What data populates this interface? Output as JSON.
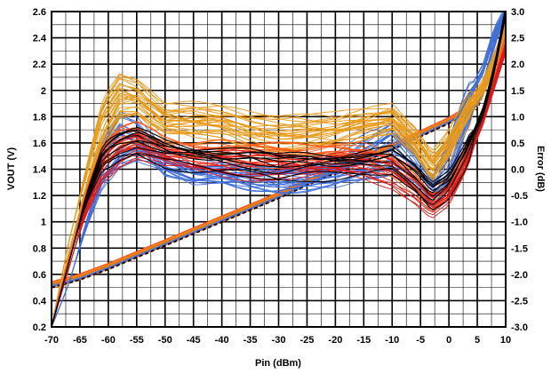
{
  "chart_data": {
    "type": "line",
    "xlabel": "Pin (dBm)",
    "ylabel": "VOUT (V)",
    "y2label": "Error (dB)",
    "xlim": [
      -70,
      10
    ],
    "ylim": [
      0.2,
      2.6
    ],
    "y2lim": [
      -3.0,
      3.0
    ],
    "x_ticks": [
      -70,
      -65,
      -60,
      -55,
      -50,
      -45,
      -40,
      -35,
      -30,
      -25,
      -20,
      -15,
      -10,
      -5,
      0,
      5,
      10
    ],
    "y_ticks": [
      "0.2",
      "0.4",
      "0.6",
      "0.8",
      "1",
      "1.2",
      "1.4",
      "1.6",
      "1.8",
      "2",
      "2.2",
      "2.4",
      "2.6"
    ],
    "y2_ticks": [
      "-3.0",
      "-2.5",
      "-2.0",
      "-1.5",
      "-1.0",
      "-0.5",
      "0.0",
      "0.5",
      "1.0",
      "1.5",
      "2.0",
      "2.5",
      "3.0"
    ],
    "grid": true,
    "minor_grid": true,
    "series_colors": [
      "#3f6fdb",
      "#e89a1a",
      "#ff5a1a",
      "#e01818",
      "#000000"
    ],
    "vout_line": {
      "x": [
        -70,
        -65,
        -60,
        -55,
        -50,
        -45,
        -40,
        -35,
        -30,
        -25,
        -20,
        -15,
        -10,
        -5,
        0,
        5,
        10
      ],
      "y": [
        0.52,
        0.58,
        0.66,
        0.75,
        0.84,
        0.93,
        1.02,
        1.11,
        1.2,
        1.3,
        1.39,
        1.48,
        1.57,
        1.67,
        1.77,
        1.9,
        2.45
      ]
    },
    "error_curves": [
      {
        "color": "#3f6fdb",
        "x": [
          -70,
          -67,
          -64,
          -61,
          -58,
          -55,
          -50,
          -45,
          -40,
          -35,
          -30,
          -25,
          -20,
          -15,
          -10,
          -6,
          -3,
          0,
          3,
          6,
          8,
          10
        ],
        "y": [
          -3.0,
          -1.8,
          -0.6,
          0.4,
          0.9,
          0.75,
          0.1,
          -0.1,
          -0.05,
          -0.15,
          -0.2,
          -0.2,
          -0.15,
          0.0,
          0.15,
          -0.1,
          -0.45,
          -0.1,
          0.9,
          1.6,
          2.4,
          3.0
        ]
      },
      {
        "color": "#3f6fdb",
        "x": [
          -70,
          -67,
          -64,
          -61,
          -58,
          -55,
          -50,
          -45,
          -40,
          -35,
          -30,
          -25,
          -20,
          -15,
          -10,
          -6,
          -3,
          0,
          3,
          6,
          8,
          10
        ],
        "y": [
          -3.0,
          -2.2,
          -1.1,
          -0.2,
          0.2,
          0.3,
          0.15,
          0.0,
          -0.05,
          -0.1,
          -0.15,
          -0.1,
          0.05,
          0.4,
          0.7,
          0.2,
          -0.3,
          0.4,
          1.3,
          1.9,
          2.6,
          3.0
        ]
      },
      {
        "color": "#e89a1a",
        "x": [
          -70,
          -67,
          -64,
          -61,
          -58,
          -55,
          -50,
          -45,
          -40,
          -35,
          -30,
          -25,
          -20,
          -15,
          -10,
          -6,
          -3,
          0,
          3,
          6,
          8,
          10
        ],
        "y": [
          -3.0,
          -1.4,
          -0.1,
          1.1,
          1.6,
          1.5,
          1.0,
          1.0,
          0.95,
          0.85,
          0.8,
          0.8,
          0.8,
          0.9,
          1.0,
          0.6,
          0.1,
          0.5,
          1.1,
          1.6,
          2.1,
          2.7
        ]
      },
      {
        "color": "#e89a1a",
        "x": [
          -70,
          -67,
          -64,
          -61,
          -58,
          -55,
          -50,
          -45,
          -40,
          -35,
          -30,
          -25,
          -20,
          -15,
          -10,
          -6,
          -3,
          0,
          3,
          6,
          8,
          10
        ],
        "y": [
          -3.0,
          -1.6,
          -0.4,
          0.6,
          1.2,
          1.25,
          0.85,
          0.75,
          0.75,
          0.6,
          0.55,
          0.55,
          0.6,
          0.75,
          0.9,
          0.5,
          0.0,
          0.4,
          1.0,
          1.5,
          2.0,
          2.5
        ]
      },
      {
        "color": "#ff5a1a",
        "x": [
          -70,
          -67,
          -64,
          -61,
          -58,
          -55,
          -50,
          -45,
          -40,
          -35,
          -30,
          -25,
          -20,
          -15,
          -10,
          -6,
          -3,
          0,
          3,
          6,
          8,
          10
        ],
        "y": [
          -3.0,
          -1.7,
          -0.5,
          0.3,
          0.6,
          0.7,
          0.45,
          0.35,
          0.35,
          0.3,
          0.3,
          0.3,
          0.35,
          0.3,
          0.1,
          -0.2,
          -0.55,
          -0.35,
          0.3,
          1.0,
          1.7,
          2.5
        ]
      },
      {
        "color": "#e01818",
        "x": [
          -70,
          -67,
          -64,
          -61,
          -58,
          -55,
          -50,
          -45,
          -40,
          -35,
          -30,
          -25,
          -20,
          -15,
          -10,
          -6,
          -3,
          0,
          3,
          6,
          8,
          10
        ],
        "y": [
          -3.0,
          -1.9,
          -0.8,
          0.0,
          0.3,
          0.45,
          0.25,
          0.15,
          0.1,
          0.05,
          0.05,
          0.05,
          0.1,
          0.05,
          -0.1,
          -0.4,
          -0.7,
          -0.5,
          0.1,
          0.9,
          1.6,
          2.3
        ]
      },
      {
        "color": "#000000",
        "x": [
          -70,
          -67,
          -64,
          -61,
          -58,
          -55,
          -50,
          -45,
          -40,
          -35,
          -30,
          -25,
          -20,
          -15,
          -10,
          -6,
          -3,
          0,
          3,
          6,
          8,
          10
        ],
        "y": [
          -3.0,
          -1.8,
          -0.6,
          0.2,
          0.4,
          0.5,
          0.3,
          0.2,
          0.15,
          0.1,
          0.0,
          0.05,
          0.05,
          0.1,
          0.15,
          -0.2,
          -0.55,
          -0.3,
          0.3,
          1.1,
          1.9,
          3.0
        ]
      }
    ]
  }
}
